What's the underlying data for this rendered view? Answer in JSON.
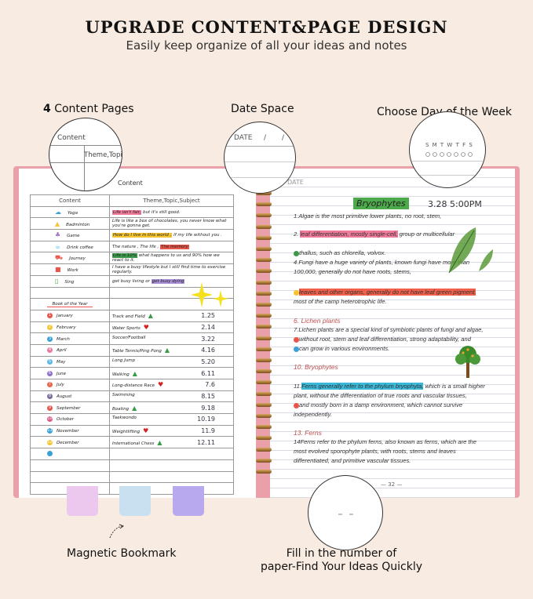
{
  "header": {
    "title": "UPGRADE CONTENT&PAGE DESIGN",
    "subtitle": "Easily keep organize of all your ideas and notes"
  },
  "features": {
    "content_pages_num": "4",
    "content_pages": " Content Pages",
    "date_space": "Date Space",
    "day_of_week": "Choose Day of the Week",
    "bookmark": "Magnetic Bookmark",
    "fill_number_1": "Fill in the number of",
    "fill_number_2": "paper-Find Your Ideas Quickly"
  },
  "zoom_circles": {
    "content": "Content",
    "theme": "Theme,Topic,Subject",
    "date": "DATE",
    "date_slashes": "/       /",
    "weekdays": "S M T W T F S"
  },
  "left_page": {
    "heading": "Content",
    "columns": [
      "Content",
      "Theme,Topic,Subject"
    ],
    "rows": [
      {
        "icon": "yoga-icon",
        "label": "Yoga",
        "hl": "Life isn't fair,",
        "hl_color": "#f07a9a",
        "text": " but it's still good."
      },
      {
        "icon": "badminton-icon",
        "label": "Badminton",
        "hl": "",
        "hl_color": "",
        "text": "Life is like a box of chocolates, you never know what you're gonna get."
      },
      {
        "icon": "game-icon",
        "label": "Game",
        "hl": "How do I live in this world ,",
        "hl_color": "#f5c531",
        "text": " If my life without you ."
      },
      {
        "icon": "coffee-icon",
        "label": "Drink coffee",
        "hl": "The memory",
        "hl_color": "#e8554a",
        "text": "The nature , The life , "
      },
      {
        "icon": "car-icon",
        "label": "Journey",
        "hl": "Life is 10%",
        "hl_color": "#3a9a4a",
        "text": " what happens to us and 90% how we react to it."
      },
      {
        "icon": "briefcase-icon",
        "label": "Work",
        "hl": "",
        "hl_color": "",
        "text": "I have a busy lifestyle but I still find time to exercise regularly."
      },
      {
        "icon": "phone-icon",
        "label": "Sing",
        "hl": "get busy dying",
        "hl_color": "#a990d8",
        "text": "get busy living or "
      }
    ],
    "book_of_year": "Book of the Year",
    "months": [
      {
        "n": "1",
        "month": "January",
        "activity": "Track and Field",
        "mark": "triangle",
        "date": "1.25",
        "color": "#e8554a"
      },
      {
        "n": "2",
        "month": "February",
        "activity": "Water Sports",
        "mark": "heart",
        "date": "2.14",
        "color": "#f5c531"
      },
      {
        "n": "3",
        "month": "March",
        "activity": "Soccer/Football",
        "mark": "",
        "date": "3.22",
        "color": "#3aa0d8"
      },
      {
        "n": "4",
        "month": "April",
        "activity": "Table Tennis/Ping Pong",
        "mark": "triangle",
        "date": "4.16",
        "color": "#e87a9a"
      },
      {
        "n": "5",
        "month": "May",
        "activity": "Long Jump",
        "mark": "",
        "date": "5.20",
        "color": "#5ab8e8"
      },
      {
        "n": "6",
        "month": "June",
        "activity": "Walking",
        "mark": "triangle",
        "date": "6.11",
        "color": "#8a70c8"
      },
      {
        "n": "7",
        "month": "July",
        "activity": "Long-distance Race",
        "mark": "heart",
        "date": "7.6",
        "color": "#e86a4a"
      },
      {
        "n": "8",
        "month": "August",
        "activity": "Swimming",
        "mark": "",
        "date": "8.15",
        "color": "#7a6a9a"
      },
      {
        "n": "9",
        "month": "September",
        "activity": "Boating",
        "mark": "triangle",
        "date": "9.18",
        "color": "#e8554a"
      },
      {
        "n": "10",
        "month": "October",
        "activity": "Taekwondo",
        "mark": "",
        "date": "10.19",
        "color": "#d85a8a"
      },
      {
        "n": "11",
        "month": "November",
        "activity": "Weightlifting",
        "mark": "heart",
        "date": "11.9",
        "color": "#3aa0d8"
      },
      {
        "n": "12",
        "month": "December",
        "activity": "International Chess",
        "mark": "triangle",
        "date": "12.11",
        "color": "#f5c531"
      }
    ]
  },
  "right_page": {
    "date_label": "DATE",
    "title": "Bryophytes",
    "title_color": "#4caa4a",
    "datetime": "3.28 5:00PM",
    "lines": [
      {
        "pre": "1.Algae is the most primitive lower plants, no root, stem,",
        "hl": "",
        "post": ""
      },
      {
        "pre": "2. ",
        "hl": "leaf differentiation, mostly single-cell,",
        "post": " group or multicellular",
        "hl_color": "#f07a9a"
      },
      {
        "pre": "",
        "dot": "#3a9a4a",
        "hl": "",
        "post": "thallus, such as chlorella, volvox."
      },
      {
        "pre": "4.Fungi have a huge variety of plants, known fungi have more than",
        "hl": "",
        "post": ""
      },
      {
        "pre": "100,000, generally do not have roots, stems,",
        "hl": "",
        "post": ""
      },
      {
        "pre": "",
        "dot": "#f5c531",
        "hl": "leaves and other organs, generally do not have leaf green pigment,",
        "post": "",
        "hl_color": "#f0604a"
      },
      {
        "pre": "most of the camp heterotrophic life.",
        "hl": "",
        "post": ""
      },
      {
        "sec": "6. Lichen plants"
      },
      {
        "pre": "7.Lichen plants are a special kind of symbiotic plants of fungi and algae,",
        "hl": "",
        "post": ""
      },
      {
        "pre": "",
        "dot": "#e8554a",
        "hl": "",
        "post": "without root, stem and leaf differentiation, strong adaptability, and"
      },
      {
        "pre": "",
        "dot": "#3aa0d8",
        "hl": "",
        "post": "can grow in various environments."
      },
      {
        "sec": "10. Bryophytes"
      },
      {
        "pre": "11.",
        "hl": "Ferns generally refer to the phylum bryophyta,",
        "post": " which is a small higher",
        "hl_color": "#3ab8d8"
      },
      {
        "pre": "plant, without the differentiation of true roots and vascular tissues,",
        "hl": "",
        "post": ""
      },
      {
        "pre": "",
        "dot": "#e8554a",
        "hl": "",
        "post": "and mostly born in a damp environment, which cannot survive"
      },
      {
        "pre": "independently.",
        "hl": "",
        "post": ""
      },
      {
        "sec": "13. Ferns"
      },
      {
        "pre": "14Ferns refer to the phylum ferns, also known as ferns, which are the",
        "hl": "",
        "post": ""
      },
      {
        "pre": "most evolved sporophyte plants, with roots, stems and leaves",
        "hl": "",
        "post": ""
      },
      {
        "pre": "differentiated, and primitive vascular tissues.",
        "hl": "",
        "post": ""
      }
    ],
    "page_number": "— 32 —"
  },
  "colors": {
    "background": "#f8ebe1",
    "cover": "#e9a0a8",
    "tab1": "#ecc8ee",
    "tab2": "#c8e0f0",
    "tab3": "#b8a8ee"
  }
}
